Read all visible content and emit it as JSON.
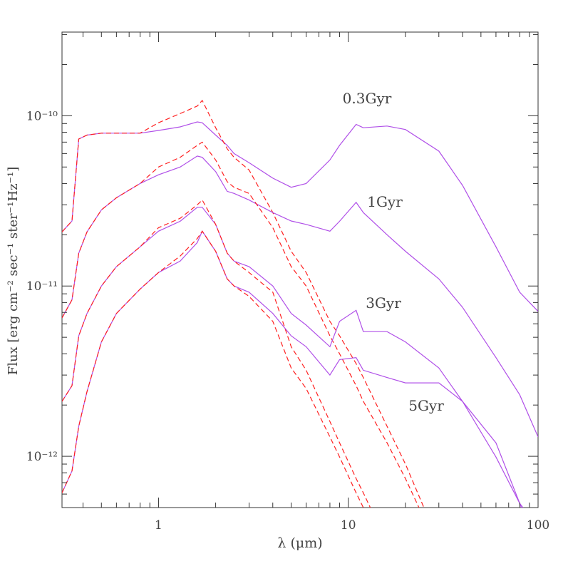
{
  "chart_data": {
    "type": "line",
    "xlabel": "λ (μm)",
    "ylabel": "Flux [erg cm⁻² sec⁻¹ ster⁻¹Hz⁻¹]",
    "annotations": [
      "0.3Gyr",
      "1Gyr",
      "3Gyr",
      "5Gyr"
    ],
    "xlog": true,
    "ylog": true,
    "xlim": [
      0.31,
      100
    ],
    "ylim": [
      5e-13,
      3.1e-10
    ],
    "xticks": [
      1,
      10,
      100
    ],
    "xminorticks": [
      0.4,
      0.5,
      0.6,
      0.7,
      0.8,
      0.9,
      2,
      3,
      4,
      5,
      6,
      7,
      8,
      9,
      20,
      30,
      40,
      50,
      60,
      70,
      80,
      90
    ],
    "yticks": [
      {
        "value": 1e-12,
        "label": "10⁻¹²"
      },
      {
        "value": 1e-11,
        "label": "10⁻¹¹"
      },
      {
        "value": 1e-10,
        "label": "10⁻¹⁰"
      }
    ],
    "yminorticks": [
      6e-13,
      7e-13,
      8e-13,
      9e-13,
      2e-12,
      3e-12,
      4e-12,
      5e-12,
      6e-12,
      7e-12,
      8e-12,
      9e-12,
      2e-11,
      3e-11,
      4e-11,
      5e-11,
      6e-11,
      7e-11,
      8e-11,
      9e-11,
      2e-10,
      3e-10
    ],
    "x": [
      0.31,
      0.35,
      0.38,
      0.42,
      0.5,
      0.6,
      0.8,
      1,
      1.3,
      1.6,
      1.7,
      2,
      2.3,
      2.5,
      3,
      4,
      5,
      6,
      8,
      9,
      11,
      12,
      16,
      20,
      30,
      40,
      60,
      80,
      100
    ],
    "series": [
      {
        "color": "#b050e8",
        "style": "solid",
        "values": [
          2.08e-11,
          2.41e-11,
          7.3e-11,
          7.7e-11,
          7.9e-11,
          7.9e-11,
          7.9e-11,
          8.2e-11,
          8.6e-11,
          9.2e-11,
          9.1e-11,
          7.7e-11,
          6.7e-11,
          6e-11,
          5.3e-11,
          4.3e-11,
          3.8e-11,
          4e-11,
          5.5e-11,
          6.7e-11,
          8.9e-11,
          8.5e-11,
          8.7e-11,
          8.3e-11,
          6.2e-11,
          3.9e-11,
          1.7e-11,
          9.2e-12,
          7.1e-12
        ]
      },
      {
        "color": "#ff2020",
        "style": "dashed",
        "values": [
          2.08e-11,
          2.41e-11,
          7.3e-11,
          7.7e-11,
          7.9e-11,
          7.9e-11,
          7.9e-11,
          9.1e-11,
          1.03e-10,
          1.14e-10,
          1.23e-10,
          8.5e-11,
          6.4e-11,
          5.7e-11,
          4.8e-11,
          2.7e-11,
          1.6e-11,
          1.2e-11,
          6.2e-12,
          5.1e-12,
          3.5e-12,
          2.9e-12,
          1.5e-12,
          9e-13,
          3.1e-13,
          null,
          null,
          null,
          null
        ]
      },
      {
        "color": "#b050e8",
        "style": "solid",
        "values": [
          6.5e-12,
          8.3e-12,
          1.56e-11,
          2.08e-11,
          2.8e-11,
          3.3e-11,
          4e-11,
          4.5e-11,
          5e-11,
          5.8e-11,
          5.7e-11,
          4.7e-11,
          3.6e-11,
          3.5e-11,
          3.2e-11,
          2.7e-11,
          2.41e-11,
          2.3e-11,
          2.1e-11,
          2.4e-11,
          3.1e-11,
          2.7e-11,
          2e-11,
          1.6e-11,
          1.1e-11,
          7.5e-12,
          3.8e-12,
          2.3e-12,
          1.3e-12
        ]
      },
      {
        "color": "#ff2020",
        "style": "dashed",
        "values": [
          6.5e-12,
          8.3e-12,
          1.56e-11,
          2.08e-11,
          2.8e-11,
          3.3e-11,
          4e-11,
          5e-11,
          5.7e-11,
          6.7e-11,
          7e-11,
          5.5e-11,
          4.1e-11,
          3.8e-11,
          3.5e-11,
          2.2e-11,
          1.3e-11,
          1e-11,
          5.1e-12,
          4e-12,
          2.6e-12,
          2.1e-12,
          1.2e-12,
          7.4e-13,
          2.8e-13,
          null,
          null,
          null,
          null
        ]
      },
      {
        "color": "#b050e8",
        "style": "solid",
        "values": [
          2.1e-12,
          2.6e-12,
          5.1e-12,
          6.9e-12,
          1e-11,
          1.3e-11,
          1.7e-11,
          2.1e-11,
          2.4e-11,
          2.9e-11,
          2.9e-11,
          2.3e-11,
          1.56e-11,
          1.4e-11,
          1.3e-11,
          1e-11,
          6.9e-12,
          5.9e-12,
          4.4e-12,
          6.2e-12,
          7.2e-12,
          5.4e-12,
          5.4e-12,
          4.7e-12,
          3.3e-12,
          2.1e-12,
          9.9e-13,
          5.3e-13,
          3.8e-13
        ]
      },
      {
        "color": "#ff2020",
        "style": "dashed",
        "values": [
          2.1e-12,
          2.6e-12,
          5.1e-12,
          6.9e-12,
          1e-11,
          1.3e-11,
          1.7e-11,
          2.2e-11,
          2.5e-11,
          3e-11,
          3.2e-11,
          2.3e-11,
          1.56e-11,
          1.4e-11,
          1.2e-11,
          9.2e-12,
          4.4e-12,
          3.2e-12,
          1.6e-12,
          1.2e-12,
          7.4e-13,
          6.1e-13,
          3.1e-13,
          null,
          null,
          null,
          null,
          null,
          null
        ]
      },
      {
        "color": "#b050e8",
        "style": "solid",
        "values": [
          6.1e-13,
          8.2e-13,
          1.5e-12,
          2.4e-12,
          4.7e-12,
          6.9e-12,
          9.6e-12,
          1.2e-11,
          1.4e-11,
          1.8e-11,
          2.1e-11,
          1.6e-11,
          1.1e-11,
          1e-11,
          9.2e-12,
          6.9e-12,
          5.1e-12,
          4.4e-12,
          3e-12,
          3.7e-12,
          3.8e-12,
          3.2e-12,
          2.9e-12,
          2.7e-12,
          2.7e-12,
          2.1e-12,
          1.2e-12,
          5.3e-13,
          2.8e-13
        ]
      },
      {
        "color": "#ff2020",
        "style": "dashed",
        "values": [
          6.1e-13,
          8.2e-13,
          1.5e-12,
          2.4e-12,
          4.7e-12,
          6.9e-12,
          9.6e-12,
          1.2e-11,
          1.5e-11,
          1.9e-11,
          2.1e-11,
          1.6e-11,
          1.1e-11,
          1e-11,
          8.7e-12,
          6.2e-12,
          3.3e-12,
          2.5e-12,
          1.3e-12,
          9.9e-13,
          6.1e-13,
          5e-13,
          2.6e-13,
          null,
          null,
          null,
          null,
          null,
          null
        ]
      }
    ]
  }
}
